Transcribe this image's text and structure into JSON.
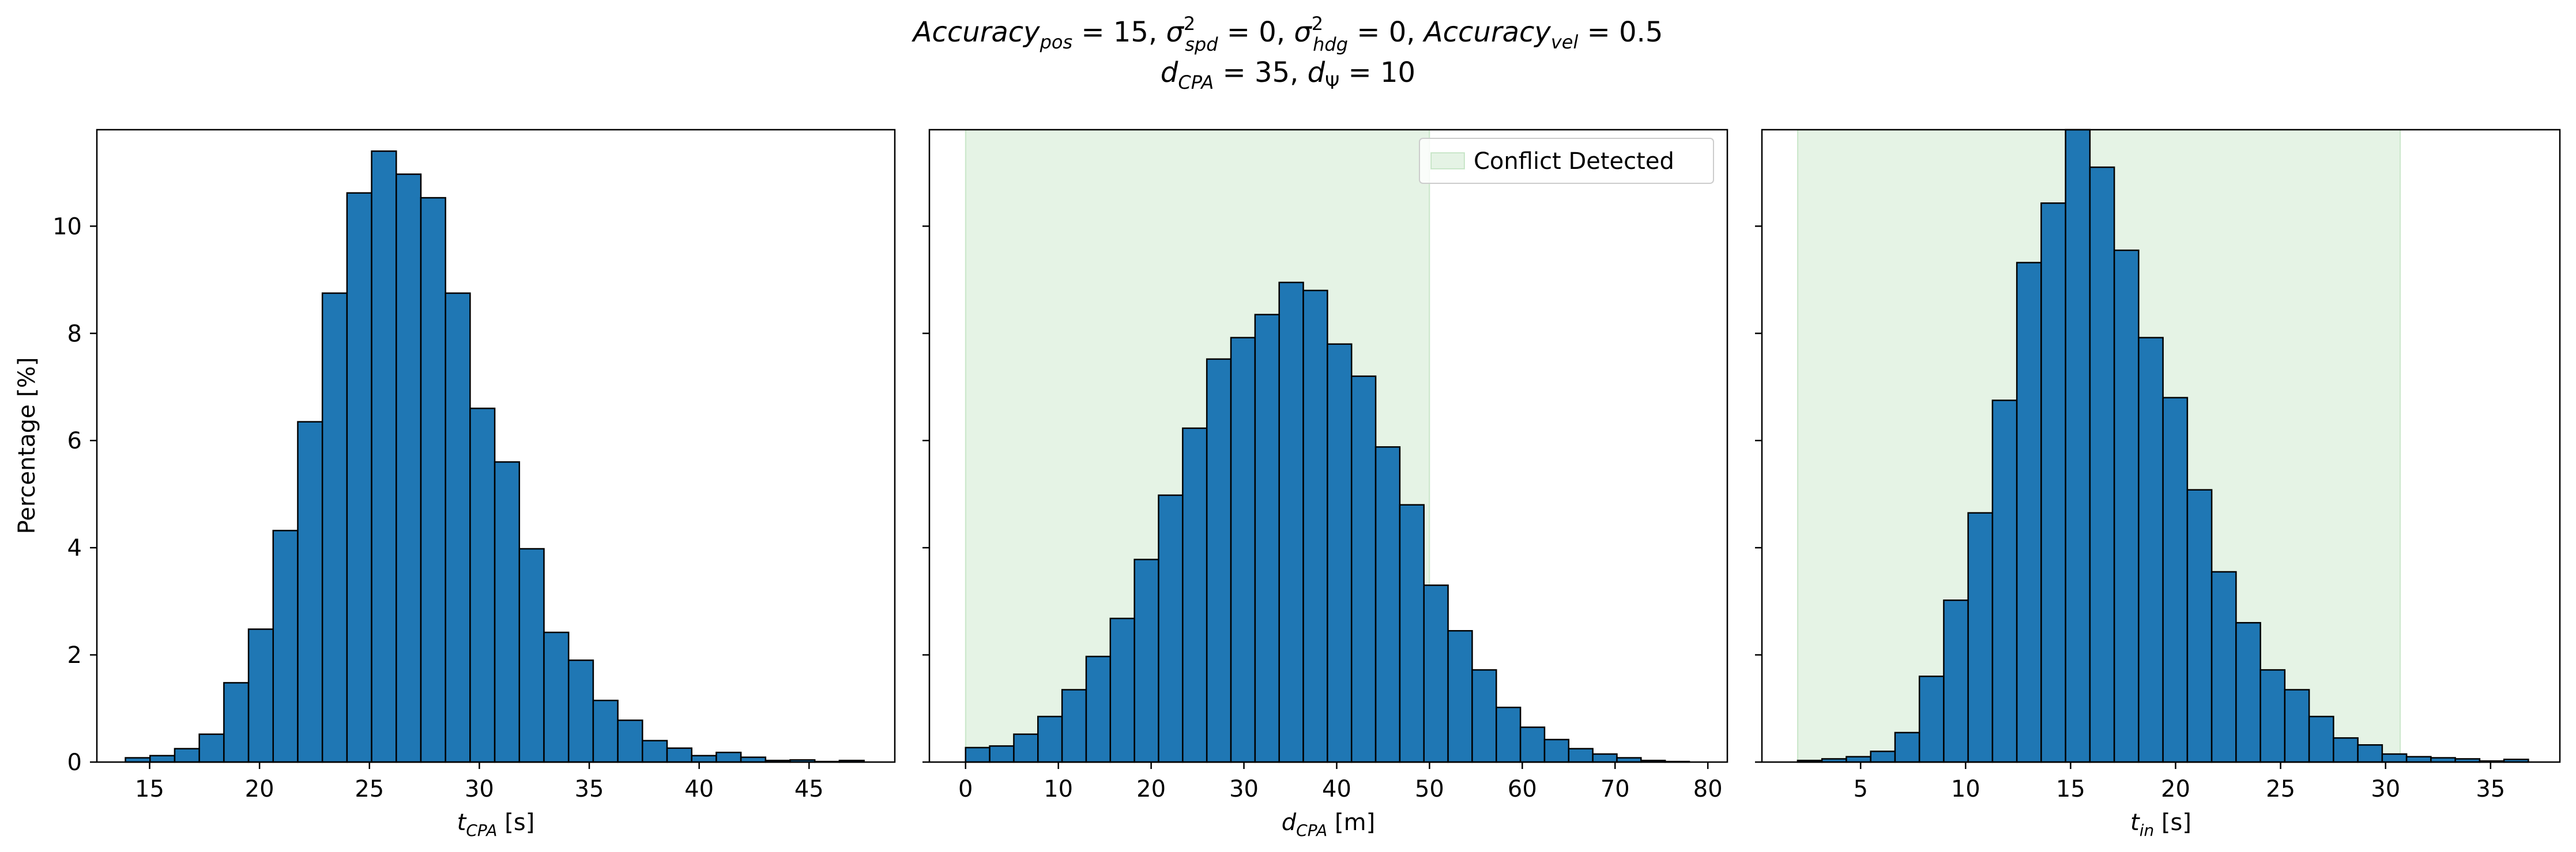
{
  "figure": {
    "title_line1": "Accuracy_pos = 15, σ²_spd = 0, σ²_hdg = 0, Accuracy_vel = 0.5",
    "title_line2": "d_CPA = 35, d_Ψ = 10"
  },
  "colors": {
    "bar_fill": "#1f77b4",
    "bar_edge": "#000000",
    "conflict_fill": "#2ca02c"
  },
  "chart_data": [
    {
      "type": "bar",
      "xlabel": "t_CPA [s]",
      "ylabel": "Percentage [%]",
      "xlim": [
        12.6,
        48.9
      ],
      "ylim": [
        0,
        11.8
      ],
      "xticks": [
        15,
        20,
        25,
        30,
        35,
        40,
        45
      ],
      "yticks": [
        0,
        2,
        4,
        6,
        8,
        10
      ],
      "bin_width": 1.12,
      "bin_start": 13.9,
      "values": [
        0.08,
        0.12,
        0.25,
        0.52,
        1.48,
        2.48,
        4.32,
        6.35,
        8.75,
        10.62,
        11.4,
        10.97,
        10.53,
        8.75,
        6.6,
        5.6,
        3.98,
        2.42,
        1.9,
        1.15,
        0.78,
        0.4,
        0.26,
        0.12,
        0.18,
        0.09,
        0.03,
        0.04,
        0.01,
        0.03
      ],
      "shaded_region": null,
      "legend": null
    },
    {
      "type": "bar",
      "xlabel": "d_CPA [m]",
      "ylabel": "",
      "xlim": [
        -3.9,
        82.1
      ],
      "ylim": [
        0,
        11.8
      ],
      "xticks": [
        0,
        10,
        20,
        30,
        40,
        50,
        60,
        70,
        80
      ],
      "yticks": [
        0,
        2,
        4,
        6,
        8,
        10
      ],
      "bin_width": 2.6,
      "bin_start": 0.0,
      "values": [
        0.27,
        0.3,
        0.52,
        0.85,
        1.35,
        1.97,
        2.68,
        3.78,
        4.98,
        6.23,
        7.52,
        7.92,
        8.35,
        8.95,
        8.8,
        7.8,
        7.2,
        5.88,
        4.8,
        3.3,
        2.45,
        1.72,
        1.02,
        0.65,
        0.42,
        0.25,
        0.15,
        0.08,
        0.03,
        0.01
      ],
      "shaded_region": [
        0,
        50
      ],
      "legend": {
        "label": "Conflict Detected",
        "location": "upper right"
      }
    },
    {
      "type": "bar",
      "xlabel": "t_in [s]",
      "ylabel": "",
      "xlim": [
        0.3,
        38.3
      ],
      "ylim": [
        0,
        11.8
      ],
      "xticks": [
        5,
        10,
        15,
        20,
        25,
        30,
        35
      ],
      "yticks": [
        0,
        2,
        4,
        6,
        8,
        10
      ],
      "bin_width": 1.16,
      "bin_start": 2.0,
      "values": [
        0.03,
        0.06,
        0.1,
        0.2,
        0.55,
        1.6,
        3.02,
        4.65,
        6.75,
        9.32,
        10.43,
        12.5,
        11.1,
        9.55,
        7.92,
        6.8,
        5.08,
        3.55,
        2.6,
        1.72,
        1.35,
        0.85,
        0.45,
        0.32,
        0.15,
        0.1,
        0.08,
        0.06,
        0.02,
        0.05
      ],
      "shaded_region": [
        2,
        30.7
      ],
      "legend": null
    }
  ]
}
